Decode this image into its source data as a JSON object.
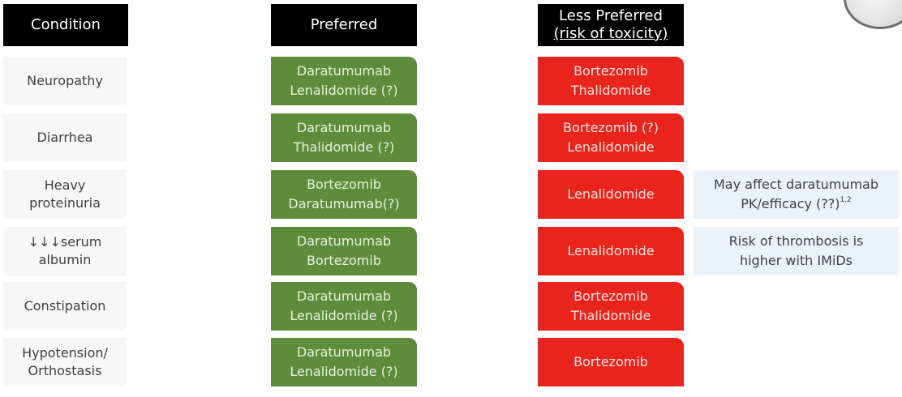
{
  "headers": {
    "condition": "Condition",
    "preferred": "Preferred",
    "less_line1": "Less Preferred",
    "less_line2": "(risk of toxicity)"
  },
  "rows": [
    {
      "condition": [
        "Neuropathy"
      ],
      "preferred": [
        "Daratumumab",
        "Lenalidomide (?)"
      ],
      "less": [
        "Bortezomib",
        "Thalidomide"
      ]
    },
    {
      "condition": [
        "Diarrhea"
      ],
      "preferred": [
        "Daratumumab",
        "Thalidomide (?)"
      ],
      "less": [
        "Bortezomib (?)",
        "Lenalidomide"
      ]
    },
    {
      "condition": [
        "Heavy",
        "proteinuria"
      ],
      "preferred": [
        "Bortezomib",
        "Daratumumab(?)"
      ],
      "less": [
        "Lenalidomide"
      ],
      "note": [
        "May affect daratumumab",
        "PK/efficacy (??)"
      ],
      "note_sup": "1,2"
    },
    {
      "condition": [
        "↓↓↓serum",
        "albumin"
      ],
      "preferred": [
        "Daratumumab",
        "Bortezomib"
      ],
      "less": [
        "Lenalidomide"
      ],
      "note": [
        "Risk of thrombosis is",
        "higher with IMiDs"
      ]
    },
    {
      "condition": [
        "Constipation"
      ],
      "preferred": [
        "Daratumumab",
        "Lenalidomide (?)"
      ],
      "less": [
        "Bortezomib",
        "Thalidomide"
      ]
    },
    {
      "condition": [
        "Hypotension/",
        "Orthostasis"
      ],
      "preferred": [
        "Daratumumab",
        "Lenalidomide (?)"
      ],
      "less": [
        "Bortezomib"
      ]
    }
  ],
  "colors": {
    "header_bg": "#000000",
    "preferred_bg": "#5e8c3a",
    "less_preferred_bg": "#e8241c",
    "note_bg": "#eaf2fb",
    "condition_bg": "#f7f7f7"
  }
}
